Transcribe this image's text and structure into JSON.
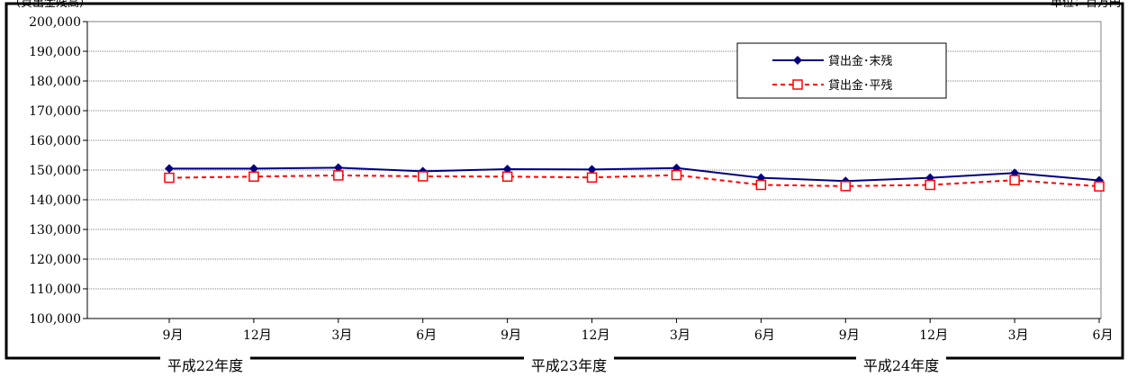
{
  "header": {
    "left_note": "（貸出金残高）",
    "right_note": "単位：百万円"
  },
  "chart_data": {
    "type": "line",
    "categories": [
      "9月",
      "12月",
      "3月",
      "6月",
      "9月",
      "12月",
      "3月",
      "6月",
      "9月",
      "12月",
      "3月",
      "6月"
    ],
    "fiscal_years": [
      {
        "label": "平成22年度"
      },
      {
        "label": "平成23年度"
      },
      {
        "label": "平成24年度"
      }
    ],
    "ylim": [
      100000,
      200000
    ],
    "yticks": [
      "100,000",
      "110,000",
      "120,000",
      "130,000",
      "140,000",
      "150,000",
      "160,000",
      "170,000",
      "180,000",
      "190,000",
      "200,000"
    ],
    "grid": true,
    "legend_position": "top-right",
    "series": [
      {
        "name": "貸出金･末残",
        "color": "#000080",
        "marker": "diamond",
        "line": "solid",
        "values": [
          150500,
          150500,
          150800,
          149600,
          150300,
          150200,
          150700,
          147400,
          146300,
          147400,
          149000,
          146500
        ]
      },
      {
        "name": "貸出金･平残",
        "color": "#ff0000",
        "marker": "square-open",
        "line": "dashed",
        "values": [
          147400,
          147800,
          148200,
          147900,
          147800,
          147500,
          148300,
          145000,
          144600,
          145000,
          146600,
          144500
        ]
      }
    ]
  }
}
